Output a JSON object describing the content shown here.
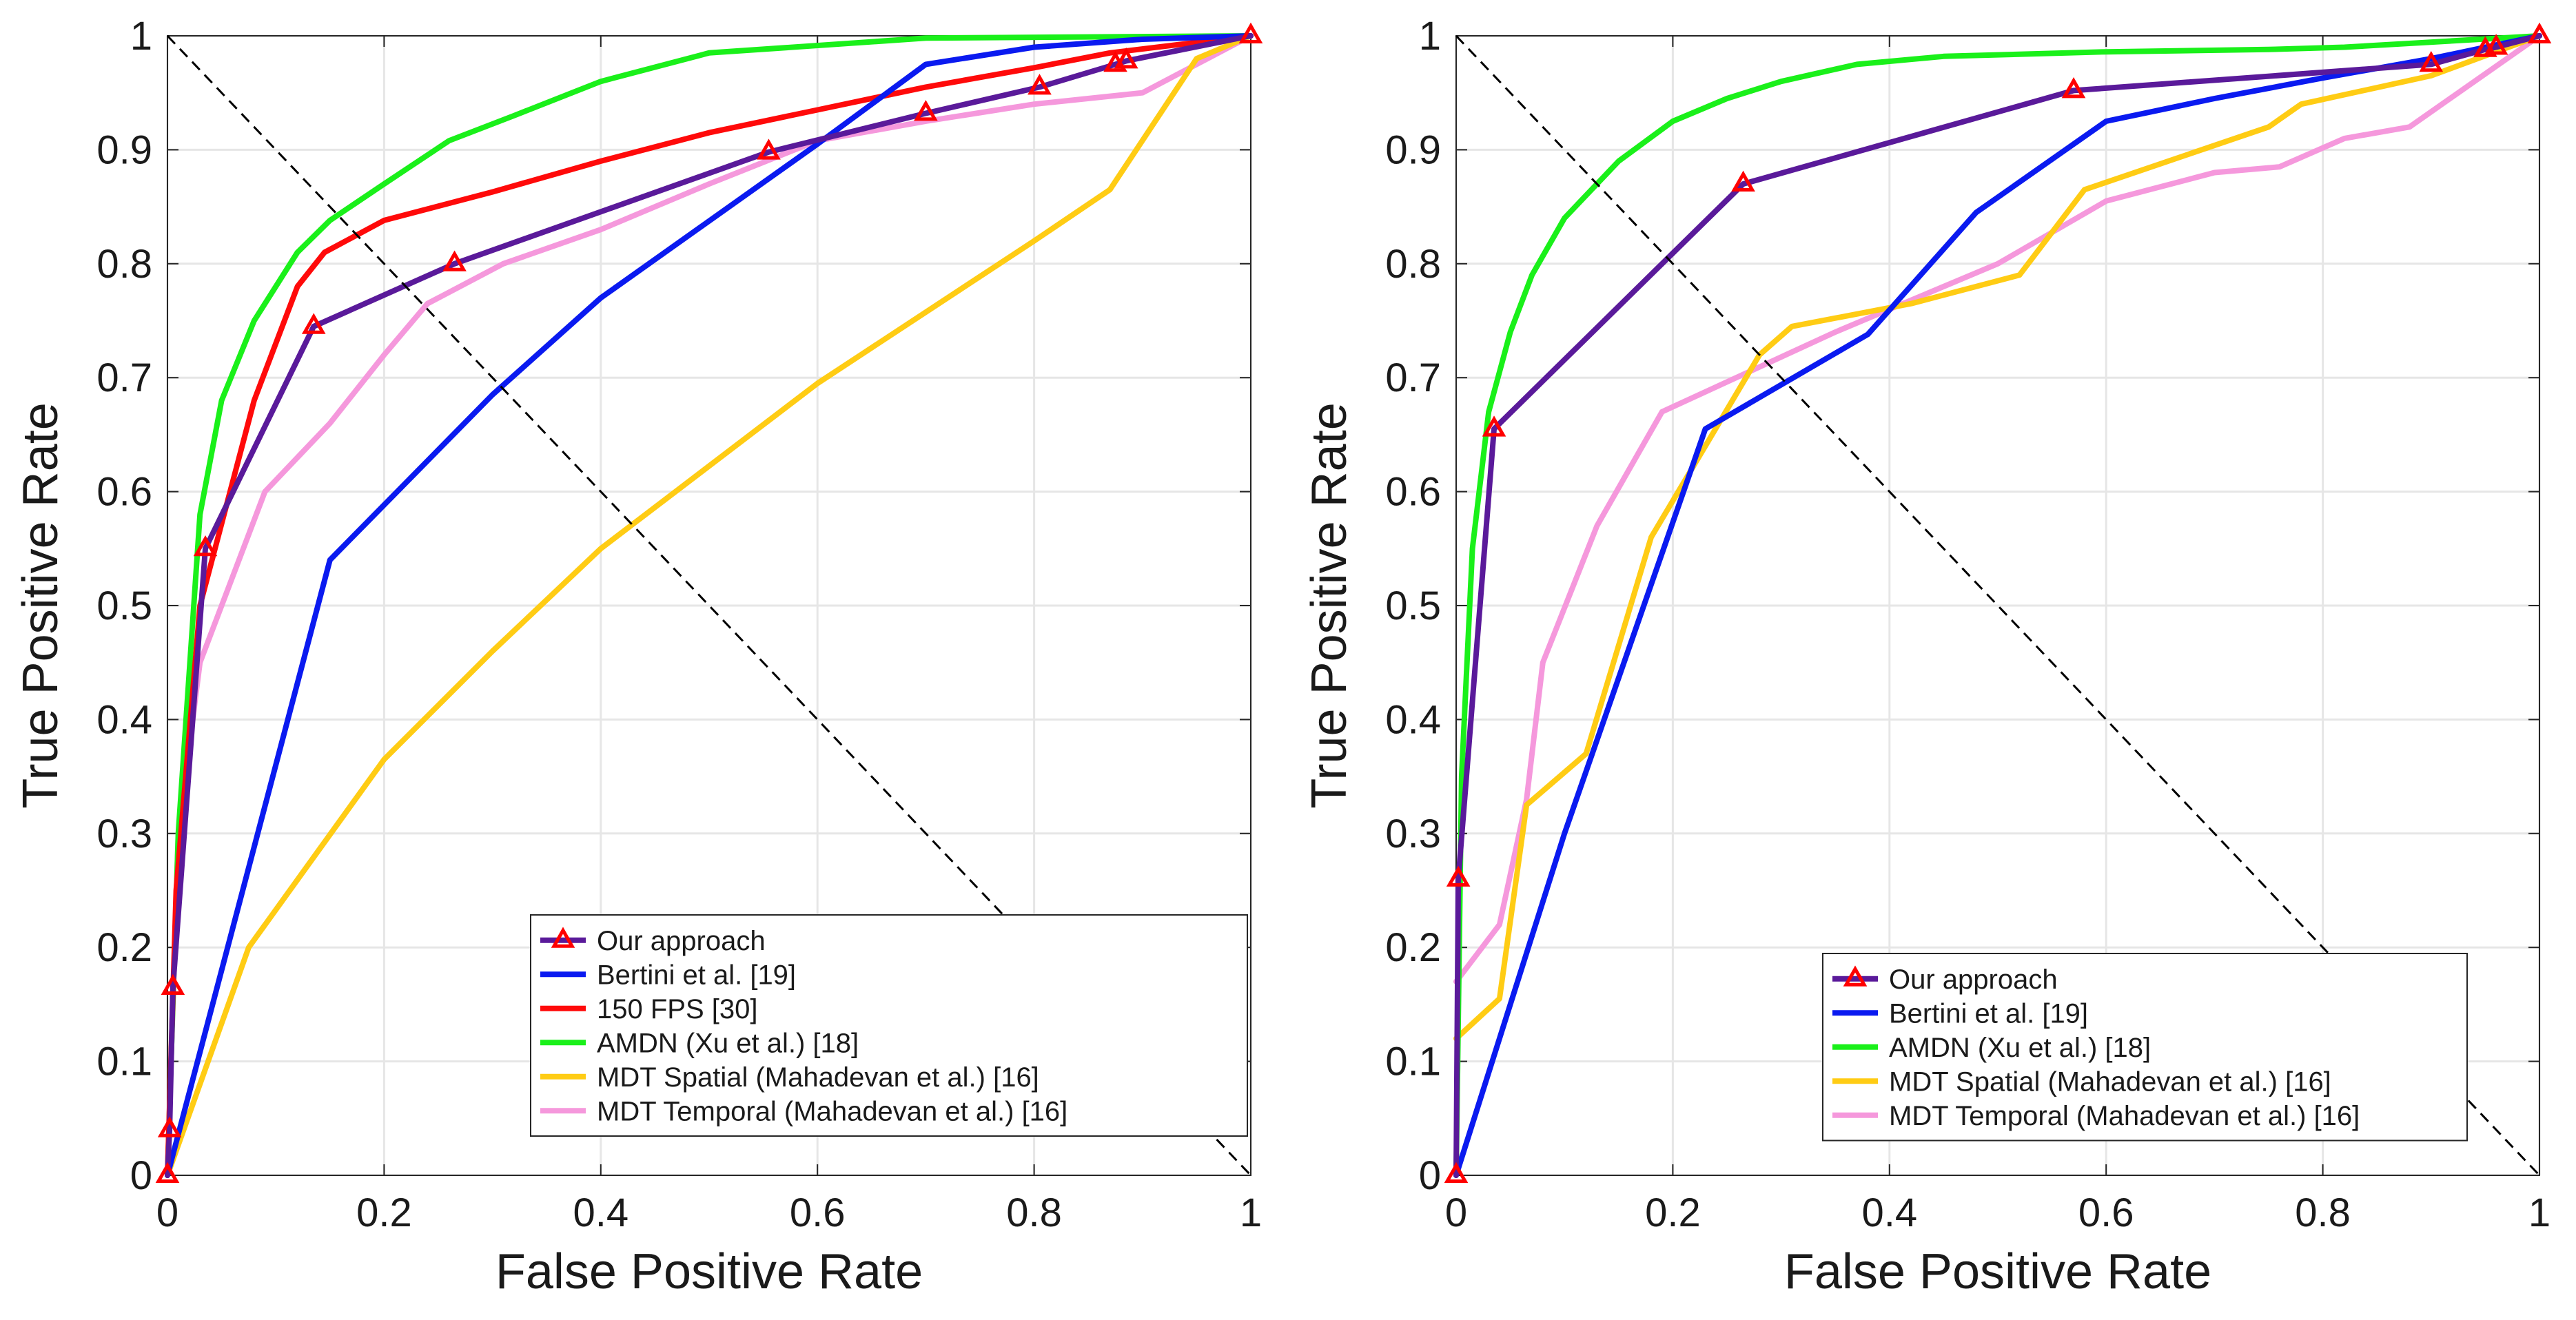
{
  "chart_data": [
    {
      "type": "line",
      "title": "",
      "xlabel": "False Positive Rate",
      "ylabel": "True Positive Rate",
      "xlim": [
        0,
        1
      ],
      "ylim": [
        0,
        1
      ],
      "xticks": [
        0,
        0.2,
        0.4,
        0.6,
        0.8,
        1
      ],
      "xtick_labels": [
        "0",
        "0.2",
        "0.4",
        "0.6",
        "0.8",
        "1"
      ],
      "yticks": [
        0,
        0.1,
        0.2,
        0.3,
        0.4,
        0.5,
        0.6,
        0.7,
        0.8,
        0.9,
        1
      ],
      "ytick_labels": [
        "0",
        "0.1",
        "0.2",
        "0.3",
        "0.4",
        "0.5",
        "0.6",
        "0.7",
        "0.8",
        "0.9",
        "1"
      ],
      "grid": true,
      "legend_position": "bottom-right",
      "reference_line": {
        "x": [
          0,
          1
        ],
        "y": [
          1,
          0
        ],
        "style": "dashed",
        "color": "#000000"
      },
      "series": [
        {
          "name": "Our approach",
          "color": "#5a1a9a",
          "marker": "triangle",
          "x": [
            0,
            0.002,
            0.005,
            0.035,
            0.135,
            0.265,
            0.555,
            0.7,
            0.805,
            0.875,
            0.885,
            1
          ],
          "y": [
            0,
            0.04,
            0.165,
            0.55,
            0.745,
            0.8,
            0.898,
            0.932,
            0.955,
            0.975,
            0.978,
            1
          ]
        },
        {
          "name": "Bertini et al. [19]",
          "color": "#0a1af0",
          "marker": "none",
          "x": [
            0,
            0.15,
            0.3,
            0.4,
            0.6,
            0.7,
            0.8,
            0.9,
            1
          ],
          "y": [
            0,
            0.54,
            0.685,
            0.77,
            0.905,
            0.975,
            0.99,
            0.997,
            1
          ]
        },
        {
          "name": "150 FPS [30]",
          "color": "#ff0a0a",
          "marker": "none",
          "x": [
            0,
            0.008,
            0.03,
            0.08,
            0.12,
            0.145,
            0.2,
            0.3,
            0.4,
            0.5,
            0.6,
            0.7,
            0.8,
            0.87,
            1
          ],
          "y": [
            0,
            0.25,
            0.5,
            0.68,
            0.78,
            0.81,
            0.838,
            0.863,
            0.89,
            0.915,
            0.935,
            0.955,
            0.972,
            0.985,
            1
          ]
        },
        {
          "name": "AMDN (Xu et al.) [18]",
          "color": "#1af01a",
          "marker": "none",
          "x": [
            0,
            0.01,
            0.03,
            0.05,
            0.08,
            0.12,
            0.15,
            0.2,
            0.26,
            0.32,
            0.4,
            0.5,
            0.7,
            1
          ],
          "y": [
            0,
            0.3,
            0.58,
            0.68,
            0.75,
            0.81,
            0.838,
            0.87,
            0.908,
            0.93,
            0.96,
            0.985,
            0.998,
            1
          ]
        },
        {
          "name": "MDT Spatial (Mahadevan et al.) [16]",
          "color": "#ffcc14",
          "marker": "none",
          "x": [
            0,
            0.075,
            0.2,
            0.3,
            0.4,
            0.6,
            0.8,
            0.87,
            0.95,
            1
          ],
          "y": [
            0,
            0.2,
            0.365,
            0.46,
            0.55,
            0.695,
            0.82,
            0.865,
            0.98,
            1
          ]
        },
        {
          "name": "MDT Temporal (Mahadevan et al.) [16]",
          "color": "#f598dc",
          "marker": "none",
          "x": [
            0,
            0.01,
            0.03,
            0.09,
            0.15,
            0.2,
            0.24,
            0.31,
            0.4,
            0.5,
            0.6,
            0.7,
            0.8,
            0.9,
            1
          ],
          "y": [
            0,
            0.3,
            0.45,
            0.6,
            0.66,
            0.72,
            0.765,
            0.8,
            0.83,
            0.87,
            0.908,
            0.925,
            0.94,
            0.95,
            1
          ]
        }
      ]
    },
    {
      "type": "line",
      "title": "",
      "xlabel": "False Positive Rate",
      "ylabel": "True Positive Rate",
      "xlim": [
        0,
        1
      ],
      "ylim": [
        0,
        1
      ],
      "xticks": [
        0,
        0.2,
        0.4,
        0.6,
        0.8,
        1
      ],
      "xtick_labels": [
        "0",
        "0.2",
        "0.4",
        "0.6",
        "0.8",
        "1"
      ],
      "yticks": [
        0,
        0.1,
        0.2,
        0.3,
        0.4,
        0.5,
        0.6,
        0.7,
        0.8,
        0.9,
        1
      ],
      "ytick_labels": [
        "0",
        "0.1",
        "0.2",
        "0.3",
        "0.4",
        "0.5",
        "0.6",
        "0.7",
        "0.8",
        "0.9",
        "1"
      ],
      "grid": true,
      "legend_position": "bottom-right",
      "reference_line": {
        "x": [
          0,
          1
        ],
        "y": [
          1,
          0
        ],
        "style": "dashed",
        "color": "#000000"
      },
      "series": [
        {
          "name": "Our approach",
          "color": "#5a1a9a",
          "marker": "triangle",
          "x": [
            0,
            0.002,
            0.035,
            0.265,
            0.57,
            0.9,
            0.95,
            0.96,
            1
          ],
          "y": [
            0,
            0.26,
            0.655,
            0.87,
            0.952,
            0.975,
            0.988,
            0.99,
            1
          ]
        },
        {
          "name": "Bertini et al. [19]",
          "color": "#0a1af0",
          "marker": "none",
          "x": [
            0,
            0.1,
            0.23,
            0.38,
            0.48,
            0.6,
            0.7,
            0.8,
            0.9,
            1
          ],
          "y": [
            0,
            0.3,
            0.655,
            0.738,
            0.845,
            0.925,
            0.945,
            0.963,
            0.98,
            1
          ]
        },
        {
          "name": "AMDN (Xu et al.) [18]",
          "color": "#1af01a",
          "marker": "none",
          "x": [
            0,
            0.005,
            0.015,
            0.03,
            0.05,
            0.07,
            0.1,
            0.15,
            0.2,
            0.25,
            0.3,
            0.37,
            0.45,
            0.6,
            0.75,
            0.82,
            1
          ],
          "y": [
            0,
            0.35,
            0.55,
            0.67,
            0.74,
            0.79,
            0.84,
            0.89,
            0.925,
            0.945,
            0.96,
            0.975,
            0.982,
            0.986,
            0.988,
            0.99,
            1
          ]
        },
        {
          "name": "MDT Spatial (Mahadevan et al.) [16]",
          "color": "#ffcc14",
          "marker": "none",
          "x": [
            0,
            0.04,
            0.065,
            0.12,
            0.18,
            0.28,
            0.31,
            0.42,
            0.52,
            0.58,
            0.75,
            0.78,
            0.9,
            1
          ],
          "y": [
            0.12,
            0.155,
            0.325,
            0.37,
            0.56,
            0.72,
            0.745,
            0.765,
            0.79,
            0.865,
            0.92,
            0.94,
            0.965,
            1
          ]
        },
        {
          "name": "MDT Temporal (Mahadevan et al.) [16]",
          "color": "#f598dc",
          "marker": "none",
          "x": [
            0,
            0.04,
            0.065,
            0.08,
            0.13,
            0.16,
            0.19,
            0.35,
            0.5,
            0.6,
            0.7,
            0.76,
            0.82,
            0.88,
            1
          ],
          "y": [
            0.17,
            0.22,
            0.33,
            0.45,
            0.57,
            0.62,
            0.67,
            0.74,
            0.8,
            0.855,
            0.88,
            0.885,
            0.91,
            0.92,
            1
          ]
        }
      ]
    }
  ]
}
